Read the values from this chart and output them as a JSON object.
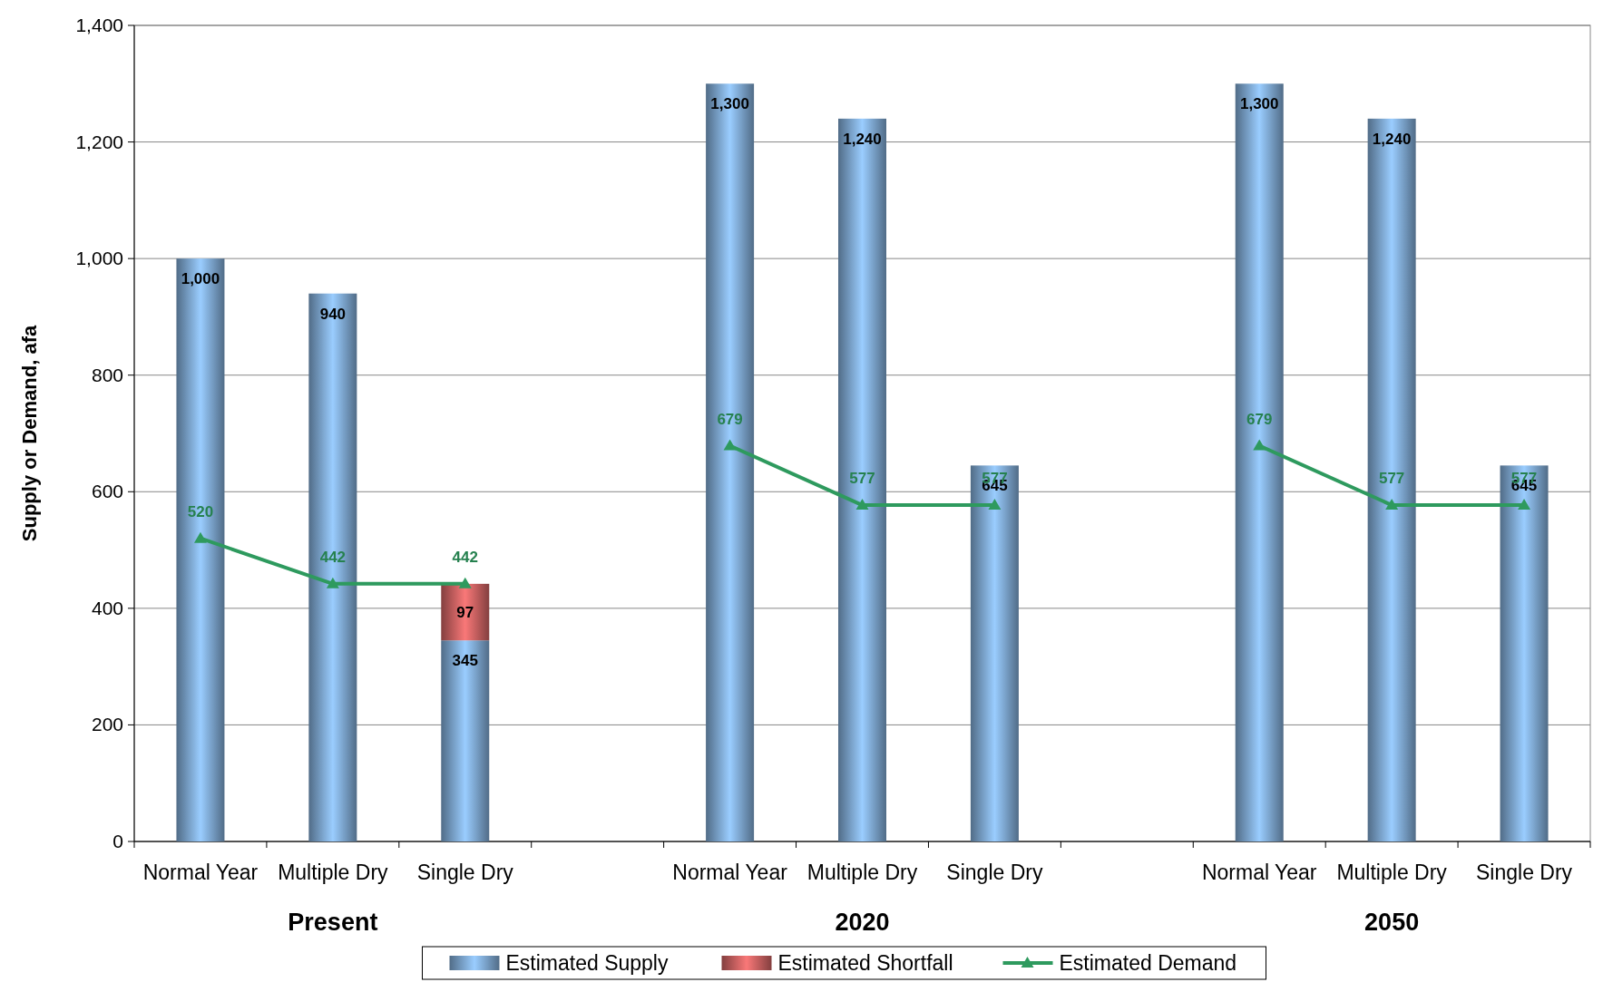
{
  "chart_data": {
    "type": "bar",
    "stacked": true,
    "ylabel": "Supply or Demand, afa",
    "categories": [
      "Normal Year",
      "Multiple Dry",
      "Single Dry",
      null,
      "Normal Year",
      "Multiple Dry",
      "Single Dry",
      null,
      "Normal Year",
      "Multiple Dry",
      "Single Dry"
    ],
    "annotations": [
      "Present",
      "2020",
      "2050"
    ],
    "ylim": [
      0,
      1400
    ],
    "yticks": [
      0,
      200,
      400,
      600,
      800,
      {
        "value": 1000,
        "label": "1,000"
      },
      {
        "value": 1200,
        "label": "1,200"
      },
      {
        "value": 1400,
        "label": "1,400"
      }
    ],
    "grid": "y",
    "legend": "bottom",
    "marker": "triangle",
    "series": [
      {
        "name": "Estimated Supply",
        "color": "#8fbfee",
        "values": [
          1000,
          940,
          345,
          null,
          1300,
          1240,
          645,
          null,
          1300,
          1240,
          645
        ],
        "value_labels": [
          "1,000",
          "940",
          "345",
          null,
          "1,300",
          "1,240",
          "645",
          null,
          "1,300",
          "1,240",
          "645"
        ]
      },
      {
        "name": "Estimated Shortfall",
        "color": "#e87070",
        "values": [
          null,
          null,
          97,
          null,
          null,
          null,
          null,
          null,
          null,
          null,
          null
        ],
        "value_labels": [
          null,
          null,
          "97",
          null,
          null,
          null,
          null,
          null,
          null,
          null,
          null
        ]
      },
      {
        "name": "Estimated Demand",
        "type": "line",
        "color": "#2e9a5e",
        "values": [
          520,
          442,
          442,
          null,
          679,
          577,
          577,
          null,
          679,
          577,
          577
        ],
        "value_labels": [
          "520",
          "442",
          "442",
          null,
          "679",
          "577",
          "577",
          null,
          "679",
          "577",
          "577"
        ]
      }
    ]
  }
}
